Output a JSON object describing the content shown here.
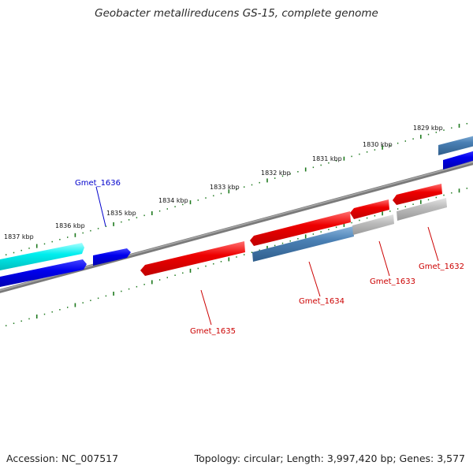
{
  "title": "Geobacter metallireducens GS-15, complete genome",
  "footer": {
    "accession": "Accession: NC_007517",
    "summary": "Topology: circular; Length: 3,997,420 bp; Genes: 3,577"
  },
  "colors": {
    "backbone": "#7a7a7a",
    "ruler": "#1f7a1f",
    "label_red": "#cc0000",
    "label_blue": "#0000cc"
  },
  "ruler_ticks": [
    "1837 kbp",
    "1836 kbp",
    "1835 kbp",
    "1834 kbp",
    "1833 kbp",
    "1832 kbp",
    "1831 kbp",
    "1830 kbp",
    "1829 kbp"
  ],
  "gene_labels": [
    {
      "name": "Gmet_1636",
      "color": "#0000cc"
    },
    {
      "name": "Gmet_1635",
      "color": "#cc0000"
    },
    {
      "name": "Gmet_1634",
      "color": "#cc0000"
    },
    {
      "name": "Gmet_1633",
      "color": "#cc0000"
    },
    {
      "name": "Gmet_1632",
      "color": "#cc0000"
    }
  ]
}
